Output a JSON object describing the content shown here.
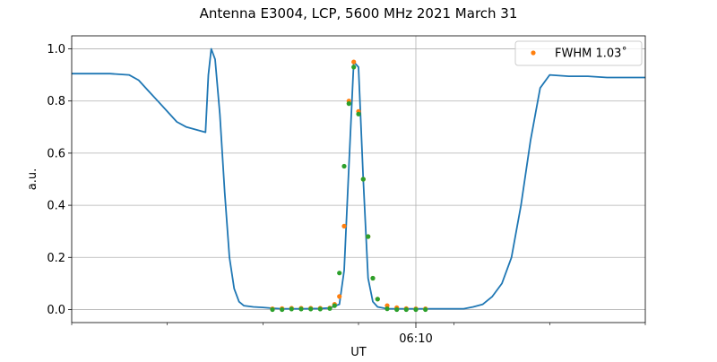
{
  "chart_data": {
    "type": "line",
    "title": "Antenna E3004, LCP, 5600 MHz 2021 March 31",
    "xlabel": "UT",
    "ylabel": "a.u.",
    "xlim": [
      "06:09:24",
      "06:10:24"
    ],
    "ylim": [
      -0.05,
      1.05
    ],
    "x_tick_labels": [
      "06:10"
    ],
    "y_ticks": [
      0.0,
      0.2,
      0.4,
      0.6,
      0.8,
      1.0
    ],
    "grid": true,
    "legend": {
      "position": "top-right",
      "entries": [
        "FWHM 1.03$^\\circ$"
      ],
      "display": "FWHM 1.03˚"
    },
    "series": [
      {
        "name": "",
        "style": "line",
        "color": "#1f77b4",
        "x": [
          "06:09:24",
          "06:09:26",
          "06:09:28",
          "06:09:30",
          "06:09:31",
          "06:09:32",
          "06:09:33",
          "06:09:34",
          "06:09:35",
          "06:09:36",
          "06:09:38",
          "06:09:38.3",
          "06:09:38.6",
          "06:09:39",
          "06:09:39.5",
          "06:09:40",
          "06:09:40.5",
          "06:09:41",
          "06:09:41.5",
          "06:09:42",
          "06:09:43",
          "06:09:44",
          "06:09:45",
          "06:09:46",
          "06:09:48",
          "06:09:50",
          "06:09:51",
          "06:09:52",
          "06:09:52.5",
          "06:09:53",
          "06:09:53.5",
          "06:09:54",
          "06:09:54.5",
          "06:09:55",
          "06:09:55.5",
          "06:09:56",
          "06:09:57",
          "06:09:58",
          "06:10:00",
          "06:10:02",
          "06:10:04",
          "06:10:05",
          "06:10:06",
          "06:10:07",
          "06:10:08",
          "06:10:09",
          "06:10:10",
          "06:10:11",
          "06:10:12",
          "06:10:13",
          "06:10:14",
          "06:10:16",
          "06:10:18",
          "06:10:20",
          "06:10:22",
          "06:10:24"
        ],
        "values": [
          0.905,
          0.905,
          0.905,
          0.9,
          0.88,
          0.84,
          0.8,
          0.76,
          0.72,
          0.7,
          0.68,
          0.9,
          1.0,
          0.96,
          0.75,
          0.45,
          0.2,
          0.08,
          0.03,
          0.015,
          0.01,
          0.008,
          0.005,
          0.003,
          0.003,
          0.004,
          0.006,
          0.02,
          0.15,
          0.55,
          0.95,
          0.93,
          0.5,
          0.12,
          0.03,
          0.01,
          0.003,
          0.003,
          0.003,
          0.003,
          0.003,
          0.003,
          0.01,
          0.02,
          0.05,
          0.1,
          0.2,
          0.4,
          0.65,
          0.85,
          0.9,
          0.895,
          0.895,
          0.89,
          0.89,
          0.89
        ]
      },
      {
        "name": "FWHM 1.03$^\\circ$",
        "style": "scatter",
        "color": "#ff7f0e",
        "x": [
          "06:09:45",
          "06:09:46",
          "06:09:47",
          "06:09:48",
          "06:09:49",
          "06:09:50",
          "06:09:51",
          "06:09:51.5",
          "06:09:52",
          "06:09:52.5",
          "06:09:53",
          "06:09:53.5",
          "06:09:54",
          "06:09:54.5",
          "06:09:55",
          "06:09:55.5",
          "06:09:56",
          "06:09:57",
          "06:09:58",
          "06:09:59",
          "06:10:00",
          "06:10:01"
        ],
        "values": [
          0.003,
          0.004,
          0.005,
          0.005,
          0.005,
          0.005,
          0.006,
          0.02,
          0.05,
          0.32,
          0.8,
          0.95,
          0.76,
          0.5,
          0.28,
          0.12,
          0.04,
          0.015,
          0.007,
          0.004,
          0.003,
          0.003
        ]
      },
      {
        "name": "",
        "style": "scatter",
        "color": "#2ca02c",
        "x": [
          "06:09:45",
          "06:09:46",
          "06:09:47",
          "06:09:48",
          "06:09:49",
          "06:09:50",
          "06:09:51",
          "06:09:51.5",
          "06:09:52",
          "06:09:52.5",
          "06:09:53",
          "06:09:53.5",
          "06:09:54",
          "06:09:54.5",
          "06:09:55",
          "06:09:55.5",
          "06:09:56",
          "06:09:57",
          "06:09:58",
          "06:09:59",
          "06:10:00",
          "06:10:01"
        ],
        "values": [
          0.0,
          0.0,
          0.002,
          0.002,
          0.002,
          0.002,
          0.004,
          0.015,
          0.14,
          0.55,
          0.79,
          0.93,
          0.75,
          0.5,
          0.28,
          0.12,
          0.04,
          0.003,
          0.0,
          0.0,
          0.0,
          0.0
        ]
      }
    ]
  }
}
